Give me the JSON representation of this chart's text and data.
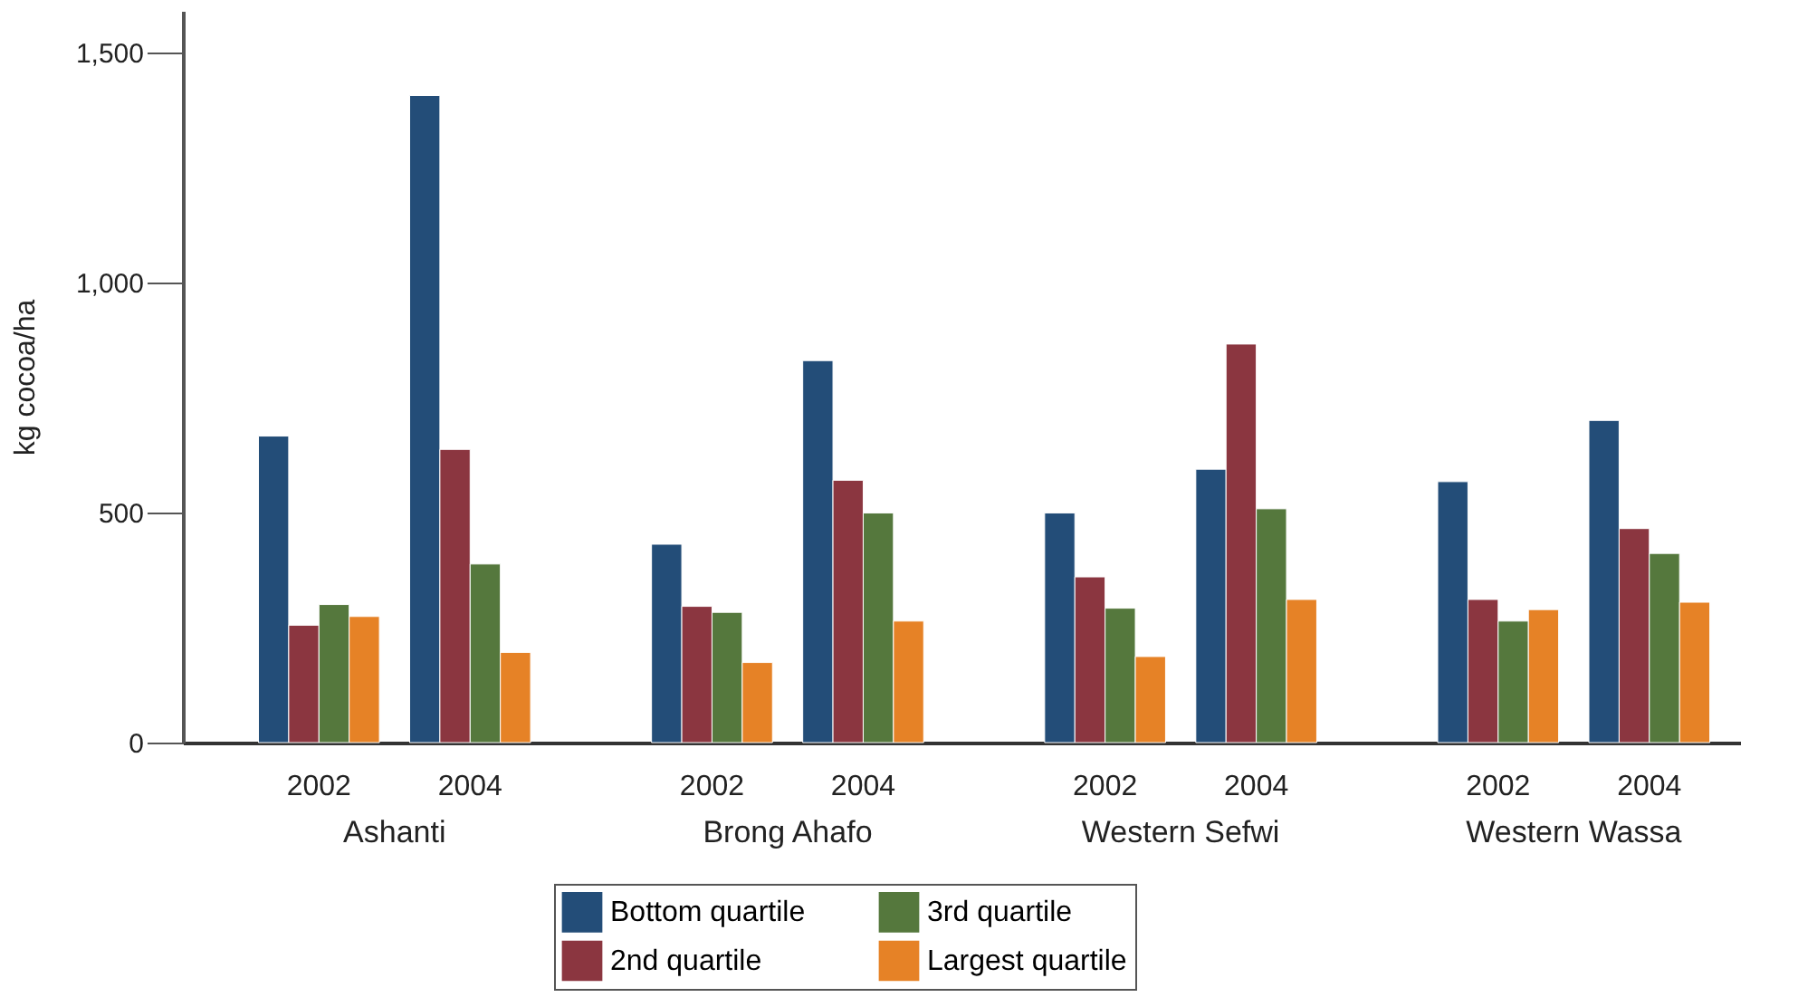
{
  "chart_data": {
    "type": "bar",
    "ylabel": "kg cocoa/ha",
    "categories": [
      "2002",
      "2004",
      "2002",
      "2004",
      "2002",
      "2004",
      "2002",
      "2004"
    ],
    "annotations": [
      "Ashanti",
      "Brong Ahafo",
      "Western Sefwi",
      "Western Wassa"
    ],
    "series": [
      {
        "name": "Bottom quartile",
        "color": "#234d78",
        "values": [
          666,
          1406,
          431,
          830,
          499,
          594,
          567,
          700
        ]
      },
      {
        "name": "2nd quartile",
        "color": "#8b3640",
        "values": [
          255,
          637,
          296,
          570,
          360,
          866,
          311,
          465
        ]
      },
      {
        "name": "3rd quartile",
        "color": "#55783d",
        "values": [
          300,
          388,
          283,
          499,
          292,
          508,
          264,
          411
        ]
      },
      {
        "name": "Largest quartile",
        "color": "#e68226",
        "values": [
          274,
          196,
          174,
          264,
          187,
          311,
          289,
          305
        ]
      }
    ],
    "ylim": [
      0,
      1590
    ],
    "yticks": [
      0,
      500,
      {
        "value": 1000,
        "label": "1,000"
      },
      {
        "value": 1500,
        "label": "1,500"
      }
    ],
    "grid": false,
    "legend": "bottom"
  }
}
